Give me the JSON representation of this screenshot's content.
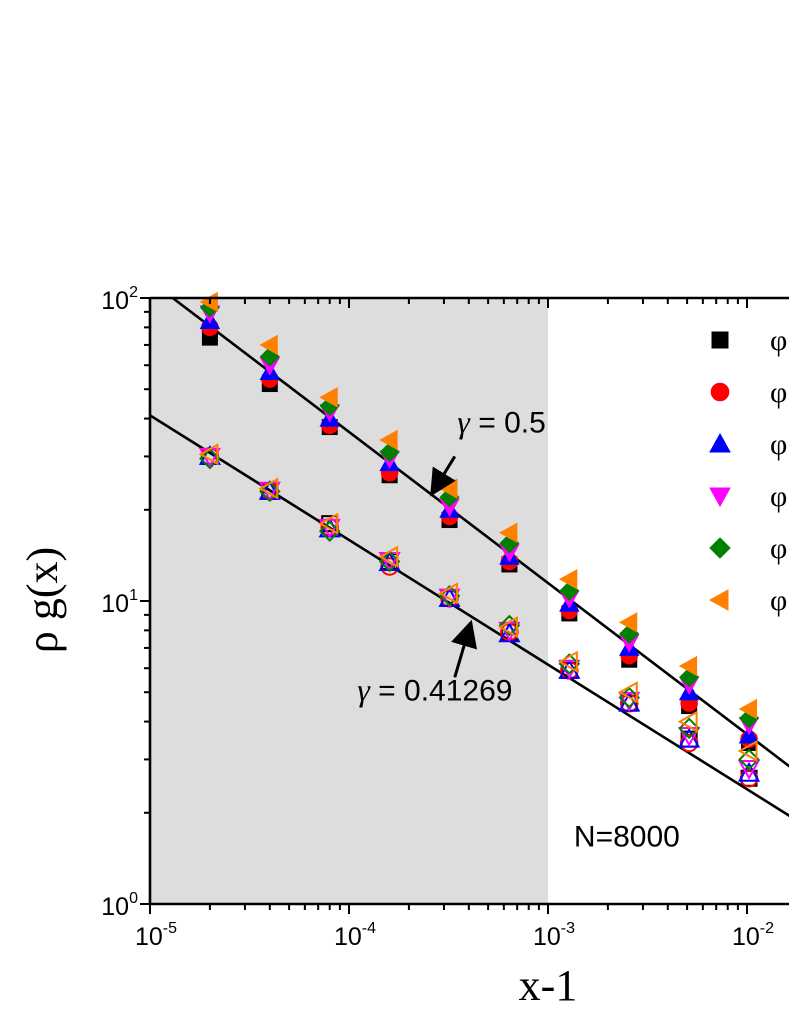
{
  "chart_data": {
    "type": "scatter",
    "x_scale": "log",
    "y_scale": "log",
    "xlim": [
      1e-05,
      0.0175
    ],
    "ylim": [
      1,
      100
    ],
    "xlabel": "x-1",
    "ylabel": "ρ g(x)",
    "x_ticks": [
      {
        "value": 1e-05,
        "base": "10",
        "exp": "-5"
      },
      {
        "value": 0.0001,
        "base": "10",
        "exp": "-4"
      },
      {
        "value": 0.001,
        "base": "10",
        "exp": "-3"
      },
      {
        "value": 0.01,
        "base": "10",
        "exp": "-2"
      }
    ],
    "y_ticks": [
      {
        "value": 1,
        "base": "10",
        "exp": "0"
      },
      {
        "value": 10,
        "base": "10",
        "exp": "1"
      },
      {
        "value": 100,
        "base": "10",
        "exp": "2"
      }
    ],
    "shaded_region": {
      "x_from": 1e-05,
      "x_to": 0.001,
      "color": "#dddddd"
    },
    "x": [
      2e-05,
      4e-05,
      8e-05,
      0.00016,
      0.00032,
      0.00064,
      0.00128,
      0.00256,
      0.00512,
      0.01024
    ],
    "series": [
      {
        "name": "φ",
        "marker": "square",
        "filled": true,
        "color": "#000000",
        "values": [
          74,
          52,
          37.5,
          26,
          18.5,
          13.2,
          9.1,
          6.4,
          4.5,
          3.4
        ]
      },
      {
        "name": "φ",
        "marker": "circle",
        "filled": true,
        "color": "#ff0000",
        "values": [
          80,
          54,
          38,
          26.5,
          19,
          13.5,
          9.3,
          6.6,
          4.6,
          3.5
        ]
      },
      {
        "name": "φ",
        "marker": "triangle-up",
        "filled": true,
        "color": "#0000ff",
        "values": [
          84,
          57,
          40,
          28.5,
          20,
          14,
          9.8,
          7.0,
          5.0,
          3.6
        ]
      },
      {
        "name": "φ",
        "marker": "triangle-down",
        "filled": true,
        "color": "#ff00ff",
        "values": [
          89,
          60,
          42,
          29.5,
          20.5,
          14.5,
          10.2,
          7.3,
          5.3,
          3.9
        ]
      },
      {
        "name": "φ",
        "marker": "diamond",
        "filled": true,
        "color": "#008000",
        "values": [
          93,
          64,
          44,
          31,
          22,
          15.5,
          10.8,
          7.8,
          5.6,
          4.1
        ]
      },
      {
        "name": "φ",
        "marker": "triangle-left",
        "filled": true,
        "color": "#ff8000",
        "values": [
          97,
          70,
          47,
          34,
          23.5,
          16.8,
          11.8,
          8.5,
          6.1,
          4.4
        ]
      },
      {
        "marker": "square",
        "filled": false,
        "color": "#000000",
        "values": [
          30,
          23,
          18,
          13.5,
          10.2,
          7.9,
          5.9,
          4.6,
          3.5,
          2.6
        ]
      },
      {
        "marker": "circle",
        "filled": false,
        "color": "#ff0000",
        "values": [
          30,
          23,
          17.5,
          13,
          10.2,
          7.9,
          5.9,
          4.6,
          3.4,
          2.6
        ]
      },
      {
        "marker": "triangle-up",
        "filled": false,
        "color": "#0000ff",
        "values": [
          30,
          23,
          17.3,
          13.4,
          10.2,
          7.8,
          5.9,
          4.6,
          3.5,
          2.7
        ]
      },
      {
        "marker": "triangle-down",
        "filled": false,
        "color": "#ff00ff",
        "values": [
          30,
          23.2,
          17.5,
          13.6,
          10.3,
          8,
          6.0,
          4.7,
          3.6,
          2.8
        ]
      },
      {
        "marker": "diamond",
        "filled": false,
        "color": "#008000",
        "values": [
          29.5,
          23,
          17,
          13.5,
          10.4,
          8.3,
          6.2,
          4.8,
          3.8,
          3.0
        ]
      },
      {
        "marker": "triangle-left",
        "filled": false,
        "color": "#ff8000",
        "values": [
          30.5,
          23.5,
          18,
          14,
          10.6,
          8.2,
          6.3,
          5.0,
          4.0,
          3.2
        ]
      }
    ],
    "fit_lines": [
      {
        "gamma": 0.5,
        "points": [
          [
            1.3e-05,
            100
          ],
          [
            0.0175,
            2.75
          ]
        ]
      },
      {
        "gamma": 0.41269,
        "points": [
          [
            1e-05,
            41
          ],
          [
            0.0175,
            1.9
          ]
        ]
      }
    ],
    "annotations": [
      {
        "greek": "γ",
        "text": " = 0.5",
        "x": 0.00035,
        "y": 36,
        "arrow_from": [
          0.00034,
          30
        ],
        "arrow_to": [
          0.00026,
          22.5
        ]
      },
      {
        "greek": "γ",
        "text": " = 0.41269",
        "x": 0.00011,
        "y": 4.7,
        "arrow_from": [
          0.00034,
          5.6
        ],
        "arrow_to": [
          0.00041,
          8.5
        ]
      },
      {
        "greek": "",
        "text": "N=8000",
        "x": 0.00135,
        "y": 1.55
      }
    ],
    "legend": {
      "position": "top-right"
    }
  }
}
